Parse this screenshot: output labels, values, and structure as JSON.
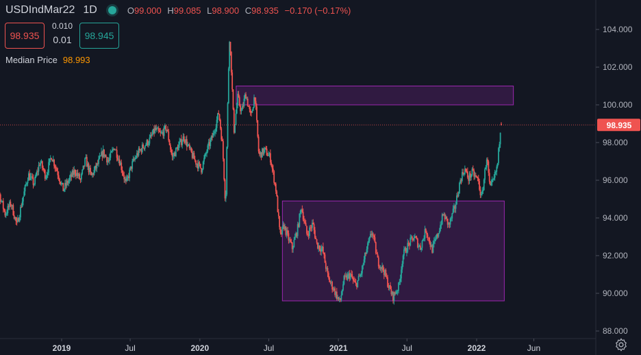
{
  "legend": {
    "symbol": "USDIndMar22",
    "timeframe": "1D",
    "ohlc": [
      {
        "k": "O",
        "v": "99.000"
      },
      {
        "k": "H",
        "v": "99.085"
      },
      {
        "k": "L",
        "v": "98.900"
      },
      {
        "k": "C",
        "v": "98.935"
      }
    ],
    "change": "−0.170 (−0.17%)"
  },
  "trade": {
    "sell_price": "98.935",
    "buy_price": "98.945",
    "spread": "0.010",
    "qty": "0.01"
  },
  "indicator": {
    "name": "Median Price",
    "value": "98.993"
  },
  "colors": {
    "bg": "#131722",
    "up": "#26a69a",
    "down": "#ef5350",
    "zone_fill": "rgba(156,39,176,0.22)",
    "zone_stroke": "#9c27b0"
  },
  "chart_data": {
    "type": "candlestick",
    "ylim": [
      88.0,
      105.0
    ],
    "y_ticks": [
      "104.000",
      "102.000",
      "100.000",
      "98.000",
      "96.000",
      "94.000",
      "92.000",
      "90.000",
      "88.000"
    ],
    "x_ticks": [
      {
        "label": "2019",
        "date": "2019-01-01"
      },
      {
        "label": "Jul",
        "date": "2019-07-01"
      },
      {
        "label": "2020",
        "date": "2020-01-01"
      },
      {
        "label": "Jul",
        "date": "2020-07-01"
      },
      {
        "label": "2021",
        "date": "2021-01-01"
      },
      {
        "label": "Jul",
        "date": "2021-07-01"
      },
      {
        "label": "2022",
        "date": "2022-01-01"
      },
      {
        "label": "Jun",
        "date": "2022-06-01"
      }
    ],
    "last_price": 98.935,
    "last_price_label": "98.935",
    "rectangles": [
      {
        "name": "resistance-zone",
        "x0": "2020-04-06",
        "x1": "2022-04-08",
        "y0": 100.0,
        "y1": 101.0
      },
      {
        "name": "range-zone",
        "x0": "2020-08-06",
        "x1": "2022-03-15",
        "y0": 89.6,
        "y1": 94.9
      }
    ],
    "price_path": [
      [
        "2018-06-20",
        95.0
      ],
      [
        "2018-07-05",
        96.7
      ],
      [
        "2018-07-20",
        95.3
      ],
      [
        "2018-08-05",
        94.2
      ],
      [
        "2018-08-20",
        94.8
      ],
      [
        "2018-09-05",
        93.6
      ],
      [
        "2018-09-20",
        95.0
      ],
      [
        "2018-10-05",
        96.3
      ],
      [
        "2018-10-20",
        95.8
      ],
      [
        "2018-11-05",
        97.0
      ],
      [
        "2018-11-20",
        96.2
      ],
      [
        "2018-12-05",
        97.3
      ],
      [
        "2018-12-20",
        96.5
      ],
      [
        "2019-01-05",
        95.5
      ],
      [
        "2019-01-20",
        96.0
      ],
      [
        "2019-02-05",
        96.5
      ],
      [
        "2019-02-20",
        96.0
      ],
      [
        "2019-03-05",
        97.1
      ],
      [
        "2019-03-20",
        96.2
      ],
      [
        "2019-04-05",
        96.8
      ],
      [
        "2019-04-20",
        97.5
      ],
      [
        "2019-05-05",
        97.0
      ],
      [
        "2019-05-20",
        97.8
      ],
      [
        "2019-06-05",
        96.9
      ],
      [
        "2019-06-20",
        95.8
      ],
      [
        "2019-07-05",
        96.8
      ],
      [
        "2019-07-20",
        97.4
      ],
      [
        "2019-08-05",
        97.8
      ],
      [
        "2019-08-20",
        98.1
      ],
      [
        "2019-09-05",
        98.7
      ],
      [
        "2019-09-20",
        98.4
      ],
      [
        "2019-10-05",
        98.8
      ],
      [
        "2019-10-20",
        97.2
      ],
      [
        "2019-11-05",
        97.8
      ],
      [
        "2019-11-20",
        98.3
      ],
      [
        "2019-12-05",
        97.6
      ],
      [
        "2019-12-20",
        97.0
      ],
      [
        "2020-01-05",
        96.6
      ],
      [
        "2020-01-20",
        97.6
      ],
      [
        "2020-02-05",
        98.4
      ],
      [
        "2020-02-20",
        99.6
      ],
      [
        "2020-03-01",
        97.8
      ],
      [
        "2020-03-09",
        94.6
      ],
      [
        "2020-03-14",
        99.5
      ],
      [
        "2020-03-19",
        103.7
      ],
      [
        "2020-03-24",
        102.0
      ],
      [
        "2020-03-31",
        98.6
      ],
      [
        "2020-04-10",
        100.4
      ],
      [
        "2020-04-20",
        99.6
      ],
      [
        "2020-05-01",
        100.6
      ],
      [
        "2020-05-15",
        99.3
      ],
      [
        "2020-05-25",
        100.6
      ],
      [
        "2020-06-05",
        97.3
      ],
      [
        "2020-06-20",
        97.6
      ],
      [
        "2020-07-05",
        97.2
      ],
      [
        "2020-07-20",
        95.5
      ],
      [
        "2020-07-31",
        93.0
      ],
      [
        "2020-08-10",
        93.6
      ],
      [
        "2020-08-20",
        93.0
      ],
      [
        "2020-09-01",
        92.4
      ],
      [
        "2020-09-15",
        93.4
      ],
      [
        "2020-09-25",
        94.6
      ],
      [
        "2020-10-10",
        93.1
      ],
      [
        "2020-10-25",
        93.7
      ],
      [
        "2020-11-05",
        92.6
      ],
      [
        "2020-11-20",
        92.3
      ],
      [
        "2020-12-05",
        90.8
      ],
      [
        "2020-12-20",
        90.2
      ],
      [
        "2021-01-05",
        89.5
      ],
      [
        "2021-01-15",
        90.7
      ],
      [
        "2021-02-01",
        91.0
      ],
      [
        "2021-02-15",
        90.4
      ],
      [
        "2021-03-01",
        91.0
      ],
      [
        "2021-03-15",
        92.2
      ],
      [
        "2021-03-31",
        93.3
      ],
      [
        "2021-04-15",
        91.7
      ],
      [
        "2021-05-01",
        91.2
      ],
      [
        "2021-05-15",
        90.3
      ],
      [
        "2021-05-25",
        89.8
      ],
      [
        "2021-06-10",
        90.4
      ],
      [
        "2021-06-20",
        92.0
      ],
      [
        "2021-07-05",
        92.6
      ],
      [
        "2021-07-20",
        93.0
      ],
      [
        "2021-08-05",
        92.4
      ],
      [
        "2021-08-20",
        93.4
      ],
      [
        "2021-09-05",
        92.3
      ],
      [
        "2021-09-20",
        93.1
      ],
      [
        "2021-10-05",
        94.2
      ],
      [
        "2021-10-20",
        93.6
      ],
      [
        "2021-11-05",
        94.6
      ],
      [
        "2021-11-20",
        96.1
      ],
      [
        "2021-11-30",
        96.6
      ],
      [
        "2021-12-10",
        96.1
      ],
      [
        "2021-12-20",
        96.4
      ],
      [
        "2022-01-05",
        96.0
      ],
      [
        "2022-01-14",
        95.0
      ],
      [
        "2022-01-28",
        97.3
      ],
      [
        "2022-02-05",
        95.5
      ],
      [
        "2022-02-15",
        96.0
      ],
      [
        "2022-02-25",
        96.8
      ],
      [
        "2022-03-07",
        99.3
      ],
      [
        "2022-03-08",
        98.9
      ]
    ]
  }
}
